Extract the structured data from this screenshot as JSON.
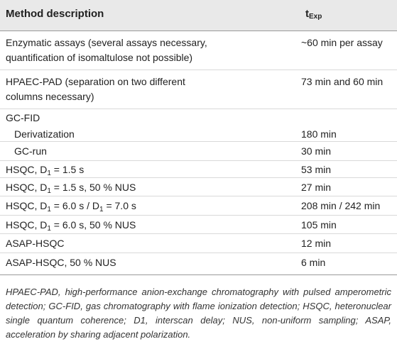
{
  "table": {
    "header": {
      "description": "Method description",
      "time_main": "t",
      "time_sub": "Exp"
    },
    "rows": [
      {
        "description_lines": [
          "Enzymatic assays (several assays necessary,",
          "quantification of isomaltulose not possible)"
        ],
        "time": "~60 min per assay"
      },
      {
        "description_lines": [
          "HPAEC-PAD (separation on two different",
          "columns necessary)"
        ],
        "time": "73 min and 60 min"
      },
      {
        "description": "GC-FID",
        "time": ""
      },
      {
        "description": "Derivatization",
        "time": "180 min"
      },
      {
        "description": "GC-run",
        "time": "30 min"
      },
      {
        "description_pre": "HSQC, D",
        "description_sub": "1",
        "description_post": " = 1.5 s",
        "time": "53 min"
      },
      {
        "description_pre": "HSQC, D",
        "description_sub": "1",
        "description_post": " = 1.5 s, 50 % NUS",
        "time": "27 min"
      },
      {
        "description_pre": "HSQC, D",
        "description_sub": "1",
        "description_mid": " = 6.0 s / D",
        "description_sub2": "1",
        "description_post": " = 7.0 s",
        "time": "208 min / 242 min"
      },
      {
        "description_pre": "HSQC, D",
        "description_sub": "1",
        "description_post": " = 6.0 s, 50 % NUS",
        "time": "105 min"
      },
      {
        "description": "ASAP-HSQC",
        "time": "12 min"
      },
      {
        "description": "ASAP-HSQC, 50 % NUS",
        "time": "6 min"
      }
    ]
  },
  "footnote": "HPAEC-PAD, high-performance anion-exchange chromatography with pulsed amperometric detection; GC-FID, gas chromatography with flame ionization detection; HSQC, heteronuclear single quantum coherence; D1, interscan delay; NUS, non-uniform sampling; ASAP, acceleration by sharing adjacent polarization."
}
